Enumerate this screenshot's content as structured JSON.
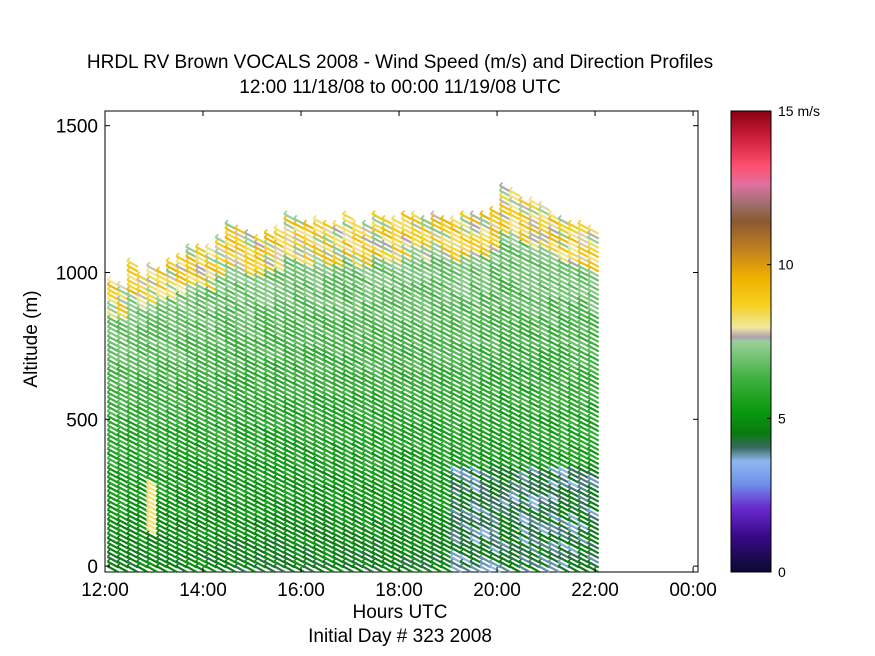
{
  "chart_data": {
    "type": "scatter",
    "title": "HRDL RV Brown VOCALS 2008 - Wind Speed (m/s) and Direction Profiles",
    "subtitle": "12:00 11/18/08 to 00:00 11/19/08  UTC",
    "xlabel": "Hours UTC",
    "xlabel2": "Initial Day # 323  2008",
    "ylabel": "Altitude (m)",
    "xlim": [
      12,
      24.1
    ],
    "ylim": [
      -20,
      1550
    ],
    "xticks": [
      12,
      14,
      16,
      18,
      20,
      22,
      24
    ],
    "xtick_labels": [
      "12:00",
      "14:00",
      "16:00",
      "18:00",
      "20:00",
      "22:00",
      "00:00"
    ],
    "yticks": [
      0,
      500,
      1000,
      1500
    ],
    "ytick_labels": [
      "0",
      "500",
      "1000",
      "1500"
    ],
    "grid": false,
    "colorbar": {
      "label": "15 m/s",
      "ticks": [
        0,
        5,
        10,
        15
      ],
      "tick_labels": [
        "0",
        "5",
        "10",
        ""
      ],
      "range": [
        0,
        15
      ]
    },
    "profile_spacing_hours": 0.2,
    "profile_tops_m": [
      980,
      960,
      1050,
      1000,
      1030,
      1020,
      1040,
      1070,
      1100,
      1100,
      1090,
      1130,
      1170,
      1160,
      1140,
      1130,
      1150,
      1160,
      1200,
      1190,
      1170,
      1190,
      1180,
      1170,
      1200,
      1180,
      1170,
      1200,
      1190,
      1190,
      1210,
      1200,
      1190,
      1200,
      1190,
      1190,
      1210,
      1200,
      1200,
      1230,
      1300,
      1280,
      1260,
      1250,
      1240,
      1210,
      1190,
      1180,
      1170,
      1160
    ]
  }
}
